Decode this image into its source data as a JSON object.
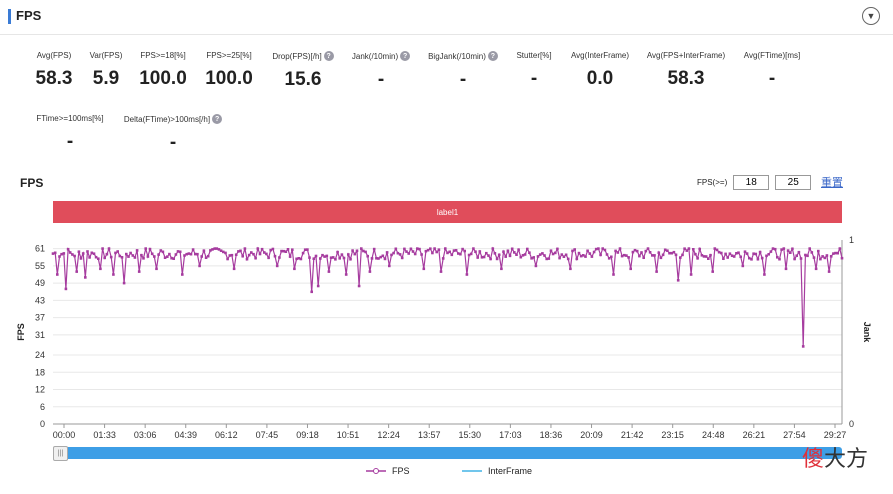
{
  "header": {
    "title": "FPS"
  },
  "metrics_row1": [
    {
      "label": "Avg(FPS)",
      "value": "58.3",
      "help": false
    },
    {
      "label": "Var(FPS)",
      "value": "5.9",
      "help": false
    },
    {
      "label": "FPS>=18[%]",
      "value": "100.0",
      "help": false
    },
    {
      "label": "FPS>=25[%]",
      "value": "100.0",
      "help": false
    },
    {
      "label": "Drop(FPS)[/h]",
      "value": "15.6",
      "help": true
    },
    {
      "label": "Jank(/10min)",
      "value": "-",
      "help": true
    },
    {
      "label": "BigJank(/10min)",
      "value": "-",
      "help": true
    },
    {
      "label": "Stutter[%]",
      "value": "-",
      "help": false
    },
    {
      "label": "Avg(InterFrame)",
      "value": "0.0",
      "help": false
    },
    {
      "label": "Avg(FPS+InterFrame)",
      "value": "58.3",
      "help": false
    },
    {
      "label": "Avg(FTime)[ms]",
      "value": "-",
      "help": false
    }
  ],
  "metrics_row2": [
    {
      "label": "FTime>=100ms[%]",
      "value": "-",
      "help": false
    },
    {
      "label": "Delta(FTime)>100ms[/h]",
      "value": "-",
      "help": true
    }
  ],
  "help_glyph": "?",
  "collapse_glyph": "▼",
  "chart_section": {
    "title": "FPS",
    "filter_label": "FPS(>=)",
    "filter_value_1": "18",
    "filter_value_2": "25",
    "reset_label": "重置",
    "band_label": "label1",
    "slider_handle_glyph": "|||"
  },
  "watermark": {
    "first": "傻",
    "rest": "大方"
  },
  "chart_data": {
    "type": "line",
    "ylabel": "FPS",
    "y2label": "Jank",
    "ylim": [
      0,
      64
    ],
    "y2lim": [
      0,
      1
    ],
    "yticks": [
      0,
      6,
      12,
      18,
      24,
      31,
      37,
      43,
      49,
      55,
      61
    ],
    "y2ticks": [
      0,
      1
    ],
    "xticks": [
      "00:00",
      "01:33",
      "03:06",
      "04:39",
      "06:12",
      "07:45",
      "09:18",
      "10:51",
      "12:24",
      "13:57",
      "15:30",
      "17:03",
      "18:36",
      "20:09",
      "21:42",
      "23:15",
      "24:48",
      "26:21",
      "27:54",
      "29:27"
    ],
    "x_range_seconds": [
      0,
      1830
    ],
    "grid": true,
    "legend_position": "bottom",
    "series": [
      {
        "name": "FPS",
        "color": "#a63c9f",
        "baseline": 59.5,
        "dips": [
          {
            "t": 8,
            "v": 52
          },
          {
            "t": 30,
            "v": 47
          },
          {
            "t": 55,
            "v": 53
          },
          {
            "t": 75,
            "v": 51
          },
          {
            "t": 110,
            "v": 54
          },
          {
            "t": 140,
            "v": 52
          },
          {
            "t": 165,
            "v": 49
          },
          {
            "t": 200,
            "v": 53
          },
          {
            "t": 240,
            "v": 54
          },
          {
            "t": 300,
            "v": 52
          },
          {
            "t": 340,
            "v": 55
          },
          {
            "t": 420,
            "v": 54
          },
          {
            "t": 520,
            "v": 55
          },
          {
            "t": 560,
            "v": 54
          },
          {
            "t": 600,
            "v": 46
          },
          {
            "t": 615,
            "v": 48
          },
          {
            "t": 640,
            "v": 53
          },
          {
            "t": 680,
            "v": 52
          },
          {
            "t": 710,
            "v": 48
          },
          {
            "t": 735,
            "v": 53
          },
          {
            "t": 780,
            "v": 55
          },
          {
            "t": 860,
            "v": 54
          },
          {
            "t": 900,
            "v": 53
          },
          {
            "t": 960,
            "v": 52
          },
          {
            "t": 1040,
            "v": 54
          },
          {
            "t": 1120,
            "v": 55
          },
          {
            "t": 1200,
            "v": 54
          },
          {
            "t": 1300,
            "v": 52
          },
          {
            "t": 1340,
            "v": 54
          },
          {
            "t": 1400,
            "v": 53
          },
          {
            "t": 1450,
            "v": 50
          },
          {
            "t": 1480,
            "v": 52
          },
          {
            "t": 1530,
            "v": 53
          },
          {
            "t": 1600,
            "v": 55
          },
          {
            "t": 1650,
            "v": 52
          },
          {
            "t": 1700,
            "v": 54
          },
          {
            "t": 1740,
            "v": 27
          },
          {
            "t": 1770,
            "v": 54
          },
          {
            "t": 1800,
            "v": 53
          }
        ]
      },
      {
        "name": "InterFrame",
        "color": "#42b4e6",
        "values": []
      }
    ]
  }
}
